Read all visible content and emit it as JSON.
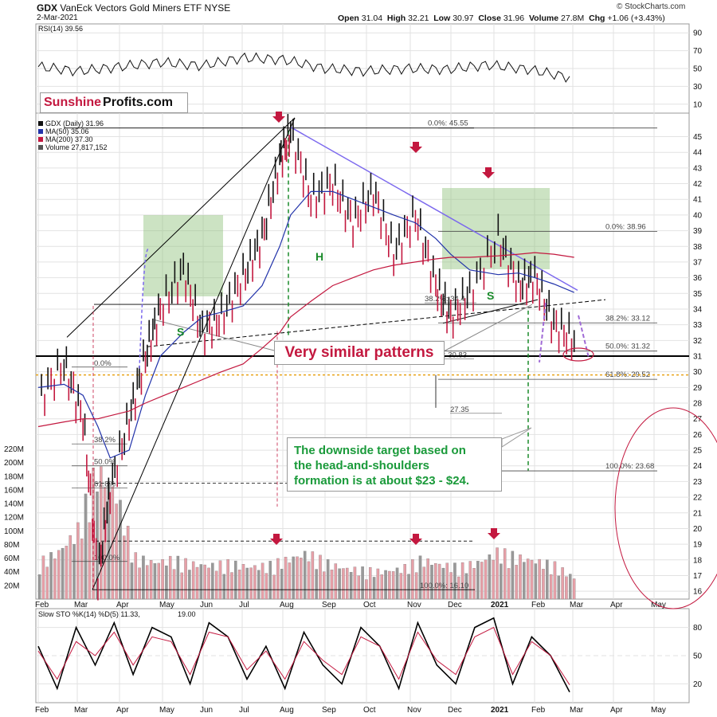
{
  "header": {
    "symbol": "GDX",
    "name": "VanEck Vectors Gold Miners ETF",
    "exchange": "NYSE",
    "date": "2-Mar-2021",
    "open_label": "Open",
    "open": "31.04",
    "high_label": "High",
    "high": "32.21",
    "low_label": "Low",
    "low": "30.97",
    "close_label": "Close",
    "close": "31.96",
    "volume_label": "Volume",
    "volume": "27.8M",
    "chg_label": "Chg",
    "chg": "+1.06 (+3.43%)",
    "credit": "© StockCharts.com"
  },
  "logo": {
    "part1": "Sunshine",
    "part2": "Profits.com"
  },
  "callouts": {
    "similar": "Very similar patterns",
    "target": "The downside target based on\nthe head-and-shoulders\nformation is at about $23 - $24."
  },
  "colors": {
    "price_up": "#111111",
    "price_down": "#c3183f",
    "ma50": "#2233aa",
    "ma200": "#c3183f",
    "trendline": "#7b68ee",
    "green_box": "#8fc27a",
    "arrow": "#c3183f",
    "fib_orange": "#e8a317",
    "green_line": "#1a8a2a",
    "ellipse": "#c3183f"
  },
  "chart_data": [
    {
      "type": "line",
      "panel": "rsi",
      "title": "RSI(14) 39.56",
      "y_ticks": [
        90,
        70,
        50,
        30,
        10
      ],
      "ylim": [
        0,
        100
      ],
      "x": [
        "Feb-2020",
        "Mar",
        "Apr",
        "May",
        "Jun",
        "Jul",
        "Aug",
        "Sep",
        "Oct",
        "Nov",
        "Dec",
        "2021",
        "Feb",
        "Mar"
      ],
      "series": [
        {
          "values": [
            52,
            47,
            52,
            57,
            53,
            62,
            60,
            50,
            47,
            50,
            49,
            54,
            49,
            40
          ]
        }
      ]
    },
    {
      "type": "line",
      "panel": "price",
      "legend": [
        "GDX (Daily) 31.96",
        "MA(50) 35.06",
        "MA(200) 37.30",
        "Volume 27,817,152"
      ],
      "ylim": [
        15.5,
        46.5
      ],
      "y_ticks": [
        16,
        17,
        18,
        19,
        20,
        21,
        22,
        23,
        24,
        25,
        26,
        27,
        28,
        29,
        30,
        31,
        32,
        33,
        34,
        35,
        36,
        37,
        38,
        39,
        40,
        41,
        42,
        43,
        44,
        45
      ],
      "x_ticks": [
        "Feb",
        "Mar",
        "Apr",
        "May",
        "Jun",
        "Jul",
        "Aug",
        "Sep",
        "Oct",
        "Nov",
        "Dec",
        "2021",
        "Feb",
        "Mar",
        "Apr",
        "May"
      ],
      "x": [
        "2020-02-01",
        "2020-02-20",
        "2020-03-05",
        "2020-03-16",
        "2020-03-25",
        "2020-04-08",
        "2020-04-20",
        "2020-05-01",
        "2020-05-18",
        "2020-06-01",
        "2020-06-15",
        "2020-07-01",
        "2020-07-15",
        "2020-07-28",
        "2020-08-05",
        "2020-08-20",
        "2020-09-05",
        "2020-09-20",
        "2020-10-05",
        "2020-10-20",
        "2020-11-05",
        "2020-11-20",
        "2020-12-01",
        "2020-12-15",
        "2021-01-05",
        "2021-01-20",
        "2021-02-01",
        "2021-02-15",
        "2021-03-02"
      ],
      "series": [
        {
          "name": "GDX",
          "values": [
            28.2,
            30.5,
            27.0,
            17.0,
            22.5,
            27.0,
            31.0,
            34.0,
            36.5,
            32.5,
            33.5,
            36.0,
            38.5,
            43.5,
            45.3,
            41.0,
            42.0,
            39.5,
            41.5,
            37.5,
            40.0,
            35.5,
            33.5,
            35.0,
            38.5,
            35.5,
            36.0,
            33.0,
            31.96
          ]
        },
        {
          "name": "MA(50)",
          "values": [
            29.0,
            29.2,
            28.5,
            26.5,
            24.5,
            25.0,
            28.5,
            31.0,
            32.5,
            33.5,
            33.8,
            34.2,
            35.5,
            38.0,
            40.0,
            41.5,
            41.5,
            41.0,
            40.5,
            40.0,
            39.5,
            38.5,
            37.5,
            36.5,
            36.2,
            36.3,
            36.0,
            35.6,
            35.06
          ]
        },
        {
          "name": "MA(200)",
          "values": [
            26.5,
            26.8,
            27.0,
            27.0,
            27.2,
            27.5,
            28.0,
            28.4,
            29.0,
            29.5,
            30.0,
            30.5,
            31.5,
            32.5,
            33.5,
            34.5,
            35.5,
            36.0,
            36.5,
            36.8,
            37.0,
            37.2,
            37.3,
            37.3,
            37.4,
            37.5,
            37.6,
            37.5,
            37.3
          ]
        }
      ],
      "fib_levels": [
        {
          "label": "0.0%: 45.55",
          "value": 45.55
        },
        {
          "label": "0.0%: 38.96",
          "value": 38.96
        },
        {
          "label": "38.2%: 33.12",
          "value": 33.12
        },
        {
          "label": "50.0%: 31.32",
          "value": 31.32
        },
        {
          "label": "61.8%: 29.52",
          "value": 29.52
        },
        {
          "label": "100.0%: 23.68",
          "value": 23.68
        },
        {
          "label": "38.2%: 34.4",
          "value": 34.4
        },
        {
          "label": "50.0%: 30.83",
          "value": 30.83
        },
        {
          "label": "27.35",
          "value": 27.35
        },
        {
          "label": "100.0%: 16.10",
          "value": 16.1
        },
        {
          "label": "0.0%",
          "value": 30.3
        },
        {
          "label": "38.2%",
          "value": 25.4
        },
        {
          "label": "50.0%",
          "value": 24.0
        },
        {
          "label": "61.8%",
          "value": 22.6
        },
        {
          "label": "100.0%",
          "value": 17.9
        }
      ],
      "pattern_labels": [
        "S",
        "H",
        "S",
        "S"
      ],
      "annotations": [
        "Very similar patterns",
        "The downside target based on the head-and-shoulders formation is at about $23 - $24."
      ]
    },
    {
      "type": "bar",
      "panel": "volume",
      "y_ticks": [
        "220M",
        "200M",
        "180M",
        "160M",
        "140M",
        "120M",
        "100M",
        "80M",
        "60M",
        "40M",
        "20M"
      ],
      "ylim": [
        0,
        230
      ],
      "values_m": [
        48,
        62,
        90,
        170,
        140,
        55,
        48,
        52,
        46,
        44,
        47,
        42,
        44,
        52,
        60,
        48,
        40,
        38,
        36,
        40,
        52,
        45,
        42,
        48,
        62,
        55,
        50,
        44,
        28
      ]
    },
    {
      "type": "line",
      "panel": "sto",
      "title_prefix": "Slow STO %K(14) %D(5) 11.33,",
      "title_value": "19.00",
      "y_ticks": [
        80,
        50,
        20
      ],
      "ylim": [
        0,
        100
      ],
      "x_ticks": [
        "Feb",
        "Mar",
        "Apr",
        "May",
        "Jun",
        "Jul",
        "Aug",
        "Sep",
        "Oct",
        "Nov",
        "Dec",
        "2021",
        "Feb",
        "Mar",
        "Apr",
        "May"
      ],
      "series": [
        {
          "name": "%K",
          "values": [
            60,
            15,
            80,
            40,
            85,
            30,
            80,
            70,
            20,
            85,
            70,
            25,
            60,
            15,
            75,
            40,
            20,
            80,
            60,
            15,
            85,
            40,
            20,
            80,
            90,
            20,
            70,
            50,
            11.33
          ]
        },
        {
          "name": "%D",
          "values": [
            55,
            25,
            65,
            50,
            75,
            40,
            70,
            65,
            30,
            75,
            70,
            35,
            55,
            25,
            65,
            45,
            30,
            70,
            60,
            25,
            75,
            45,
            30,
            70,
            80,
            30,
            65,
            50,
            19.0
          ]
        }
      ]
    }
  ]
}
